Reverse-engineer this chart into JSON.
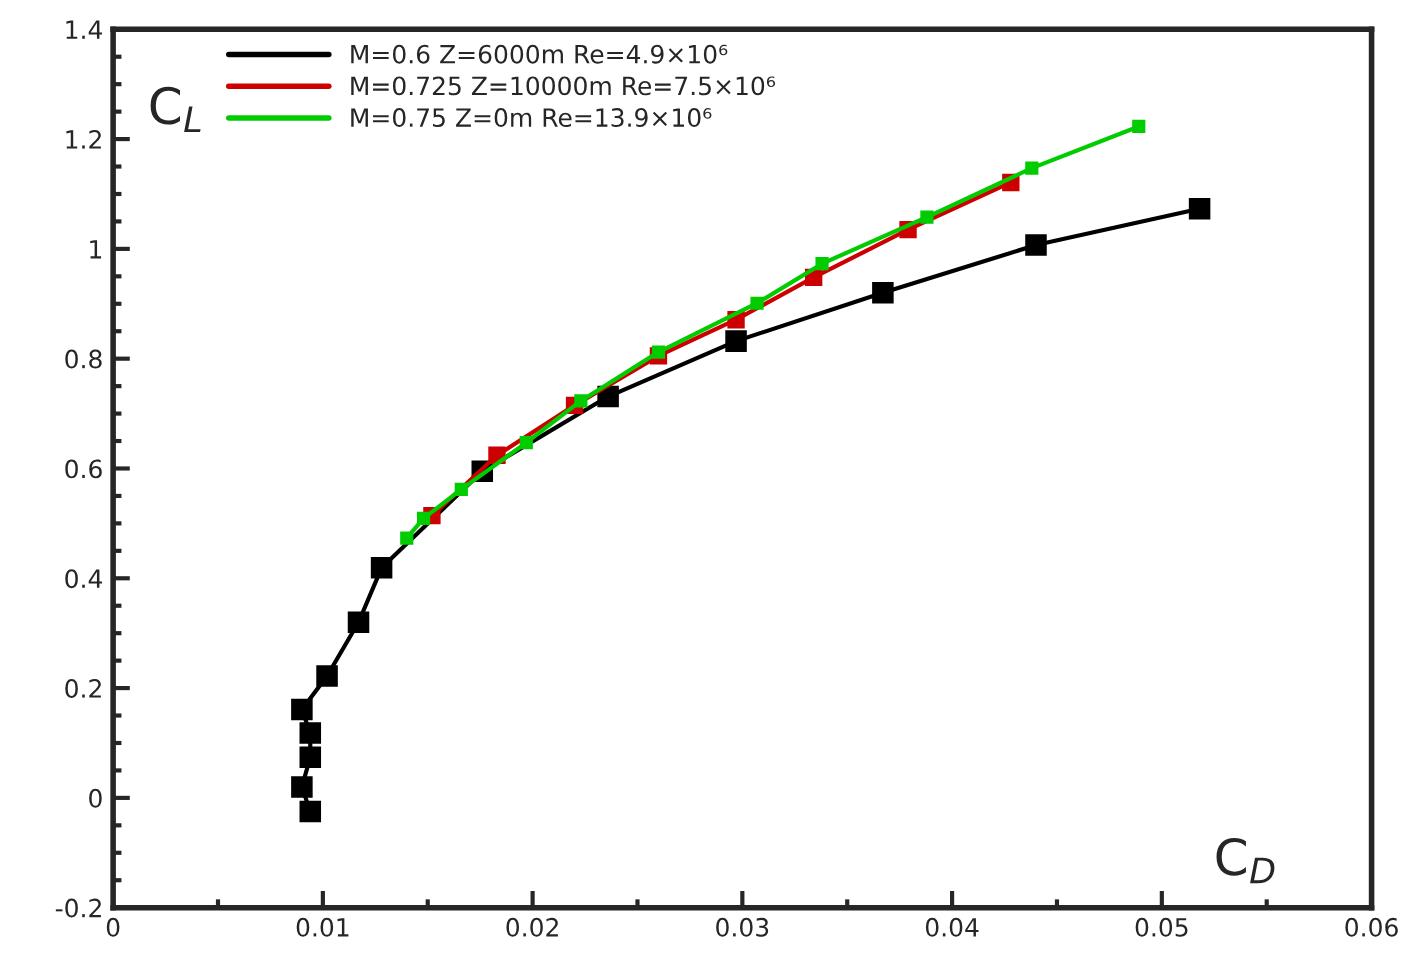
{
  "chart_data": {
    "type": "line",
    "xlabel": "C$_{D}$",
    "ylabel": "C$_{L}$",
    "xlim": [
      0,
      0.06
    ],
    "xticks": [
      0,
      0.01,
      0.02,
      0.03,
      0.04,
      0.05,
      0.06
    ],
    "ylim": [
      -0.2,
      1.4
    ],
    "yticks": [
      -0.2,
      0,
      0.2,
      0.4,
      0.6,
      0.8,
      1,
      1.2,
      1.4
    ],
    "grid": false,
    "legend": "top left",
    "marker": "square",
    "line_style": "solid",
    "series": [
      {
        "name": "M=0.6 Z=6000m Re=4.9×10⁶",
        "color": "#000000",
        "x": [
          0.0094,
          0.009,
          0.0094,
          0.0094,
          0.009,
          0.0102,
          0.0117,
          0.0128,
          0.0176,
          0.0236,
          0.0297,
          0.0367,
          0.044,
          0.0518
        ],
        "values": [
          -0.025,
          0.02,
          0.074,
          0.118,
          0.161,
          0.222,
          0.32,
          0.419,
          0.595,
          0.731,
          0.832,
          0.92,
          1.007,
          1.073
        ]
      },
      {
        "name": "M=0.725 Z=10000m Re=7.5×10⁶",
        "color": "#cc0000",
        "x": [
          0.0152,
          0.0183,
          0.022,
          0.026,
          0.0297,
          0.0334,
          0.0379,
          0.0428
        ],
        "values": [
          0.514,
          0.624,
          0.715,
          0.805,
          0.871,
          0.948,
          1.035,
          1.121
        ]
      },
      {
        "name": "M=0.75 Z=0m Re=13.9×10⁶",
        "color": "#00cc00",
        "x": [
          0.014,
          0.0148,
          0.0166,
          0.0197,
          0.0223,
          0.026,
          0.0307,
          0.0338,
          0.0388,
          0.0438,
          0.0489
        ],
        "values": [
          0.473,
          0.509,
          0.562,
          0.647,
          0.723,
          0.812,
          0.901,
          0.973,
          1.058,
          1.147,
          1.223
        ]
      }
    ]
  }
}
